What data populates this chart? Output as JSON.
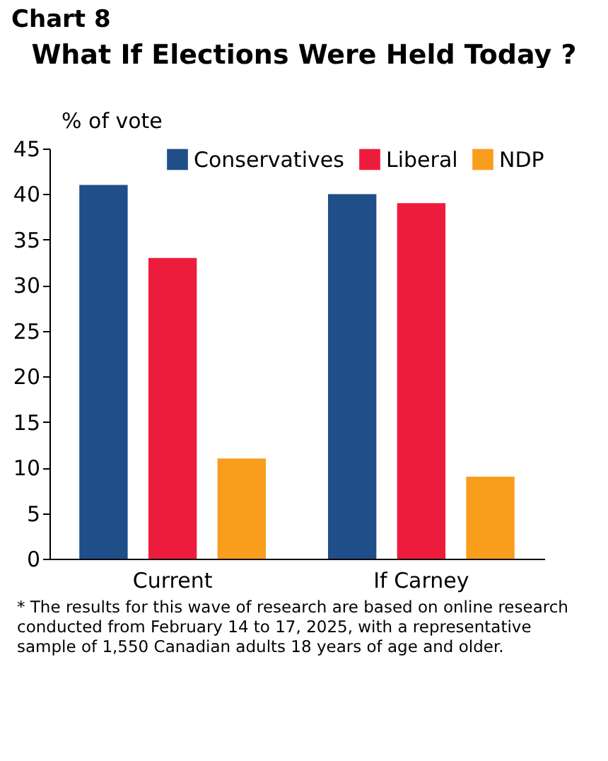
{
  "chart_data": {
    "type": "bar",
    "title": "What If Elections Were Held Today ?",
    "ylabel": "% of vote",
    "categories": [
      "Current",
      "If Carney"
    ],
    "series": [
      {
        "name": "Conservatives",
        "color": "#1f4e89",
        "values": [
          41,
          40
        ]
      },
      {
        "name": "Liberal",
        "color": "#ee1c3c",
        "values": [
          33,
          39
        ]
      },
      {
        "name": "NDP",
        "color": "#f99d1c",
        "values": [
          11,
          9
        ]
      }
    ],
    "ylim": [
      0,
      45
    ],
    "yticks": [
      0,
      5,
      10,
      15,
      20,
      25,
      30,
      35,
      40,
      45
    ],
    "grid": false,
    "legend": "top right",
    "annotations": [
      "Chart 8",
      "* The results for this wave of research are based on online research conducted from February 14 to 17, 2025, with a representative sample of 1,550 Canadian adults 18 years of age and older."
    ]
  }
}
